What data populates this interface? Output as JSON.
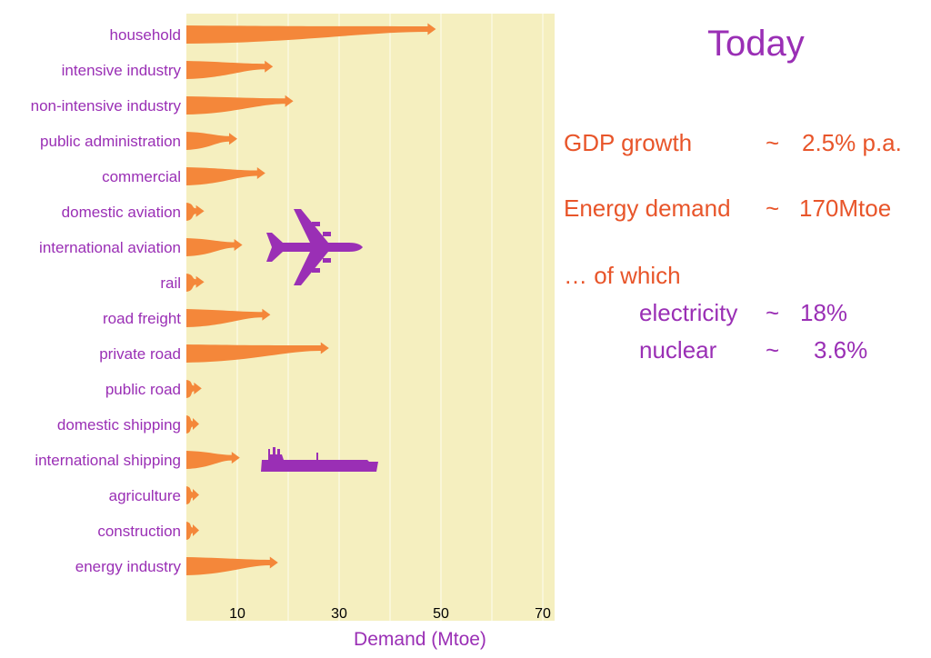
{
  "title": "Today",
  "stats": {
    "gdp_label": "GDP growth",
    "gdp_sep": "~",
    "gdp_value": "2.5% p.a.",
    "energy_label": "Energy demand",
    "energy_sep": "~",
    "energy_value": "170Mtoe",
    "of_which": "… of which",
    "electricity_label": "electricity",
    "electricity_sep": "~",
    "electricity_value": "18%",
    "nuclear_label": "nuclear",
    "nuclear_sep": "~",
    "nuclear_value": "3.6%"
  },
  "icons": [
    "airplane-icon",
    "ship-icon"
  ],
  "colors": {
    "plot_background": "#f5efbf",
    "arrow": "#f4873a",
    "label": "#9a2fb5",
    "stat_text": "#e8552a",
    "icon": "#9a2fb5"
  },
  "chart_data": {
    "type": "bar",
    "orientation": "horizontal",
    "xlabel": "Demand (Mtoe)",
    "ylabel": "",
    "xticks": [
      10,
      30,
      50,
      70
    ],
    "xlim": [
      0,
      70
    ],
    "grid": true,
    "categories": [
      "household",
      "intensive industry",
      "non-intensive industry",
      "public administration",
      "commercial",
      "domestic aviation",
      "international aviation",
      "rail",
      "road freight",
      "private road",
      "public road",
      "domestic shipping",
      "international shipping",
      "agriculture",
      "construction",
      "energy industry"
    ],
    "values": [
      49,
      17,
      21,
      10,
      15.5,
      3.5,
      11,
      3.5,
      16.5,
      28,
      3,
      2.5,
      10.5,
      2.5,
      2.5,
      18
    ]
  }
}
